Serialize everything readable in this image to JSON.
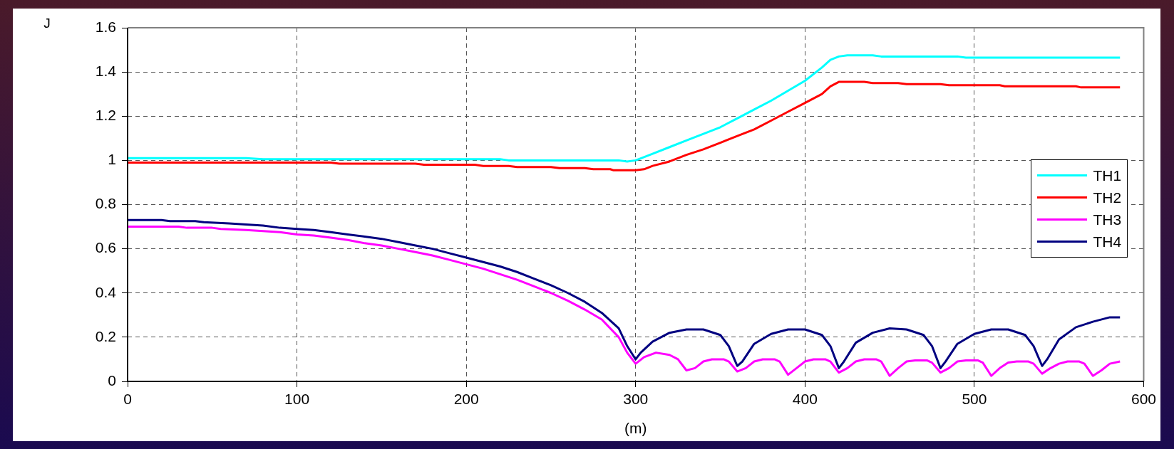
{
  "chart_data": {
    "type": "line",
    "ylabel": "J",
    "xlabel": "(m)",
    "xlim": [
      0,
      600
    ],
    "xticks": [
      0,
      100,
      200,
      300,
      400,
      500,
      600
    ],
    "ylim": [
      0,
      1.6
    ],
    "yticks": [
      0,
      0.2,
      0.4,
      0.6,
      0.8,
      1,
      1.2,
      1.4,
      1.6
    ],
    "grid": true,
    "legend": "right",
    "marker": "none",
    "line_style": "solid",
    "series": [
      {
        "name": "TH1",
        "color": "#00ffff",
        "x": [
          0,
          70,
          80,
          220,
          225,
          290,
          295,
          300,
          310,
          320,
          330,
          340,
          350,
          360,
          370,
          380,
          390,
          400,
          410,
          415,
          420,
          425,
          440,
          445,
          490,
          495,
          586
        ],
        "values": [
          1.01,
          1.01,
          1.005,
          1.005,
          1.0,
          1.0,
          0.995,
          1.0,
          1.03,
          1.06,
          1.09,
          1.12,
          1.15,
          1.19,
          1.23,
          1.27,
          1.315,
          1.36,
          1.42,
          1.455,
          1.47,
          1.475,
          1.475,
          1.47,
          1.47,
          1.465,
          1.465
        ]
      },
      {
        "name": "TH2",
        "color": "#ff0000",
        "x": [
          0,
          120,
          125,
          170,
          175,
          205,
          210,
          225,
          230,
          250,
          255,
          270,
          275,
          285,
          287,
          300,
          305,
          310,
          320,
          330,
          340,
          350,
          360,
          370,
          380,
          390,
          400,
          410,
          415,
          420,
          435,
          440,
          455,
          460,
          480,
          485,
          515,
          518,
          560,
          563,
          586
        ],
        "values": [
          0.99,
          0.99,
          0.985,
          0.985,
          0.98,
          0.98,
          0.975,
          0.975,
          0.97,
          0.97,
          0.965,
          0.965,
          0.96,
          0.96,
          0.955,
          0.955,
          0.96,
          0.975,
          0.995,
          1.025,
          1.05,
          1.08,
          1.11,
          1.14,
          1.18,
          1.22,
          1.26,
          1.3,
          1.335,
          1.355,
          1.355,
          1.35,
          1.35,
          1.345,
          1.345,
          1.34,
          1.34,
          1.335,
          1.335,
          1.33,
          1.33
        ]
      },
      {
        "name": "TH3",
        "color": "#ff00ff",
        "x": [
          0,
          30,
          35,
          50,
          55,
          70,
          80,
          90,
          100,
          110,
          120,
          130,
          140,
          150,
          160,
          170,
          180,
          190,
          200,
          210,
          220,
          230,
          240,
          250,
          260,
          270,
          280,
          290,
          295,
          300,
          305,
          312,
          320,
          325,
          330,
          335,
          340,
          345,
          352,
          355,
          360,
          365,
          370,
          375,
          382,
          385,
          390,
          395,
          400,
          405,
          412,
          415,
          420,
          425,
          430,
          435,
          442,
          445,
          450,
          455,
          460,
          465,
          472,
          475,
          480,
          485,
          490,
          495,
          502,
          505,
          510,
          515,
          520,
          525,
          532,
          535,
          540,
          545,
          550,
          555,
          562,
          565,
          570,
          575,
          580,
          586
        ],
        "values": [
          0.7,
          0.7,
          0.695,
          0.695,
          0.69,
          0.685,
          0.68,
          0.675,
          0.665,
          0.66,
          0.65,
          0.64,
          0.625,
          0.615,
          0.6,
          0.585,
          0.57,
          0.55,
          0.53,
          0.51,
          0.485,
          0.46,
          0.43,
          0.4,
          0.365,
          0.325,
          0.28,
          0.2,
          0.13,
          0.08,
          0.11,
          0.13,
          0.12,
          0.1,
          0.05,
          0.06,
          0.09,
          0.1,
          0.1,
          0.09,
          0.045,
          0.06,
          0.09,
          0.1,
          0.1,
          0.09,
          0.03,
          0.06,
          0.09,
          0.1,
          0.1,
          0.09,
          0.04,
          0.06,
          0.09,
          0.1,
          0.1,
          0.09,
          0.025,
          0.06,
          0.09,
          0.095,
          0.095,
          0.085,
          0.04,
          0.06,
          0.09,
          0.095,
          0.095,
          0.085,
          0.025,
          0.06,
          0.085,
          0.09,
          0.09,
          0.08,
          0.035,
          0.06,
          0.08,
          0.09,
          0.09,
          0.08,
          0.025,
          0.05,
          0.08,
          0.09
        ]
      },
      {
        "name": "TH4",
        "color": "#000080",
        "x": [
          0,
          20,
          25,
          40,
          45,
          60,
          70,
          80,
          90,
          100,
          110,
          120,
          130,
          140,
          150,
          160,
          170,
          180,
          190,
          200,
          210,
          220,
          230,
          240,
          250,
          260,
          270,
          280,
          290,
          295,
          300,
          303,
          310,
          320,
          330,
          340,
          350,
          355,
          360,
          363,
          370,
          380,
          390,
          400,
          410,
          415,
          420,
          423,
          430,
          440,
          450,
          460,
          470,
          475,
          480,
          483,
          490,
          500,
          510,
          520,
          530,
          535,
          540,
          543,
          550,
          560,
          570,
          580,
          586
        ],
        "values": [
          0.73,
          0.73,
          0.725,
          0.725,
          0.72,
          0.715,
          0.71,
          0.705,
          0.695,
          0.69,
          0.685,
          0.675,
          0.665,
          0.655,
          0.645,
          0.63,
          0.615,
          0.6,
          0.58,
          0.56,
          0.54,
          0.52,
          0.495,
          0.465,
          0.435,
          0.4,
          0.36,
          0.31,
          0.24,
          0.16,
          0.1,
          0.13,
          0.18,
          0.22,
          0.235,
          0.235,
          0.21,
          0.16,
          0.07,
          0.09,
          0.17,
          0.215,
          0.235,
          0.235,
          0.21,
          0.16,
          0.06,
          0.09,
          0.175,
          0.22,
          0.24,
          0.235,
          0.21,
          0.16,
          0.06,
          0.09,
          0.17,
          0.215,
          0.235,
          0.235,
          0.21,
          0.16,
          0.07,
          0.1,
          0.19,
          0.245,
          0.27,
          0.29,
          0.29
        ]
      }
    ]
  }
}
